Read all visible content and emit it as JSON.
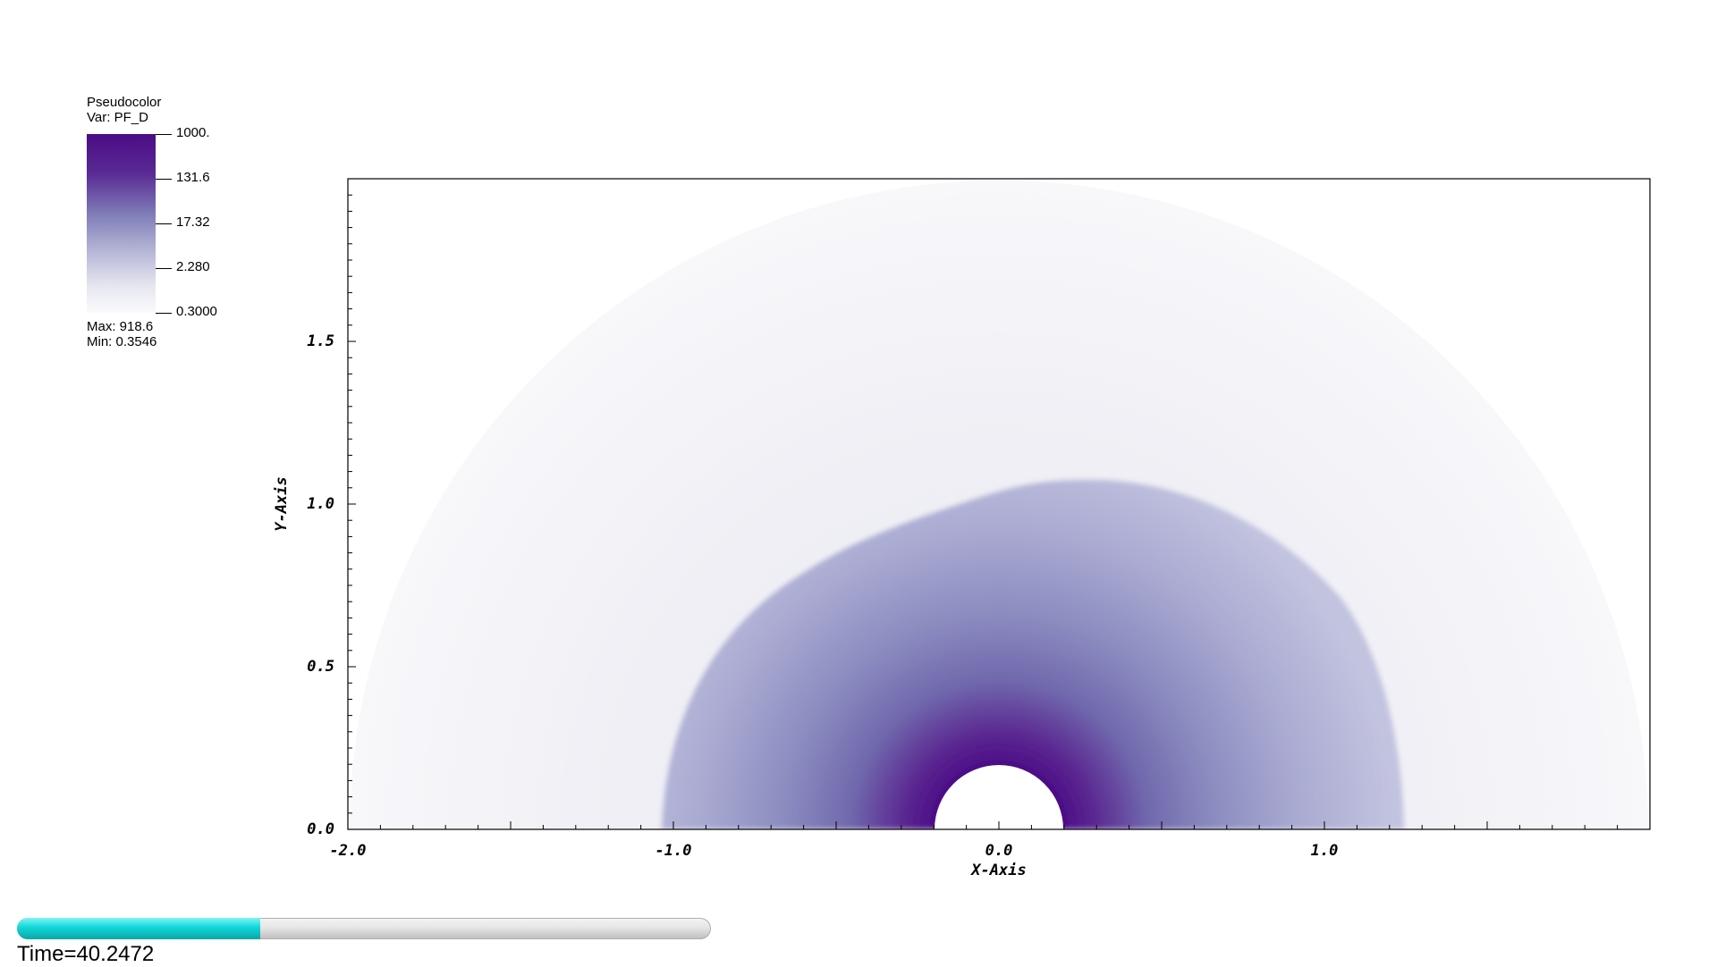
{
  "legend": {
    "title": "Pseudocolor",
    "var": "Var: PF_D",
    "ticks": [
      "1000.",
      "131.6",
      "17.32",
      "2.280",
      "0.3000"
    ],
    "max": "Max: 918.6",
    "min": "Min: 0.3546"
  },
  "axes": {
    "xlabel": "X-Axis",
    "ylabel": "Y-Axis",
    "xticks": [
      "-2.0",
      "-1.0",
      "0.0",
      "1.0"
    ],
    "yticks": [
      "0.0",
      "0.5",
      "1.0",
      "1.5"
    ]
  },
  "time": {
    "label": "Time=40.2472",
    "progress": 0.35
  },
  "colors": {
    "colormap_high": "#4b0c86",
    "colormap_low": "#fafafc",
    "time_fill": "#11d6d8"
  }
}
